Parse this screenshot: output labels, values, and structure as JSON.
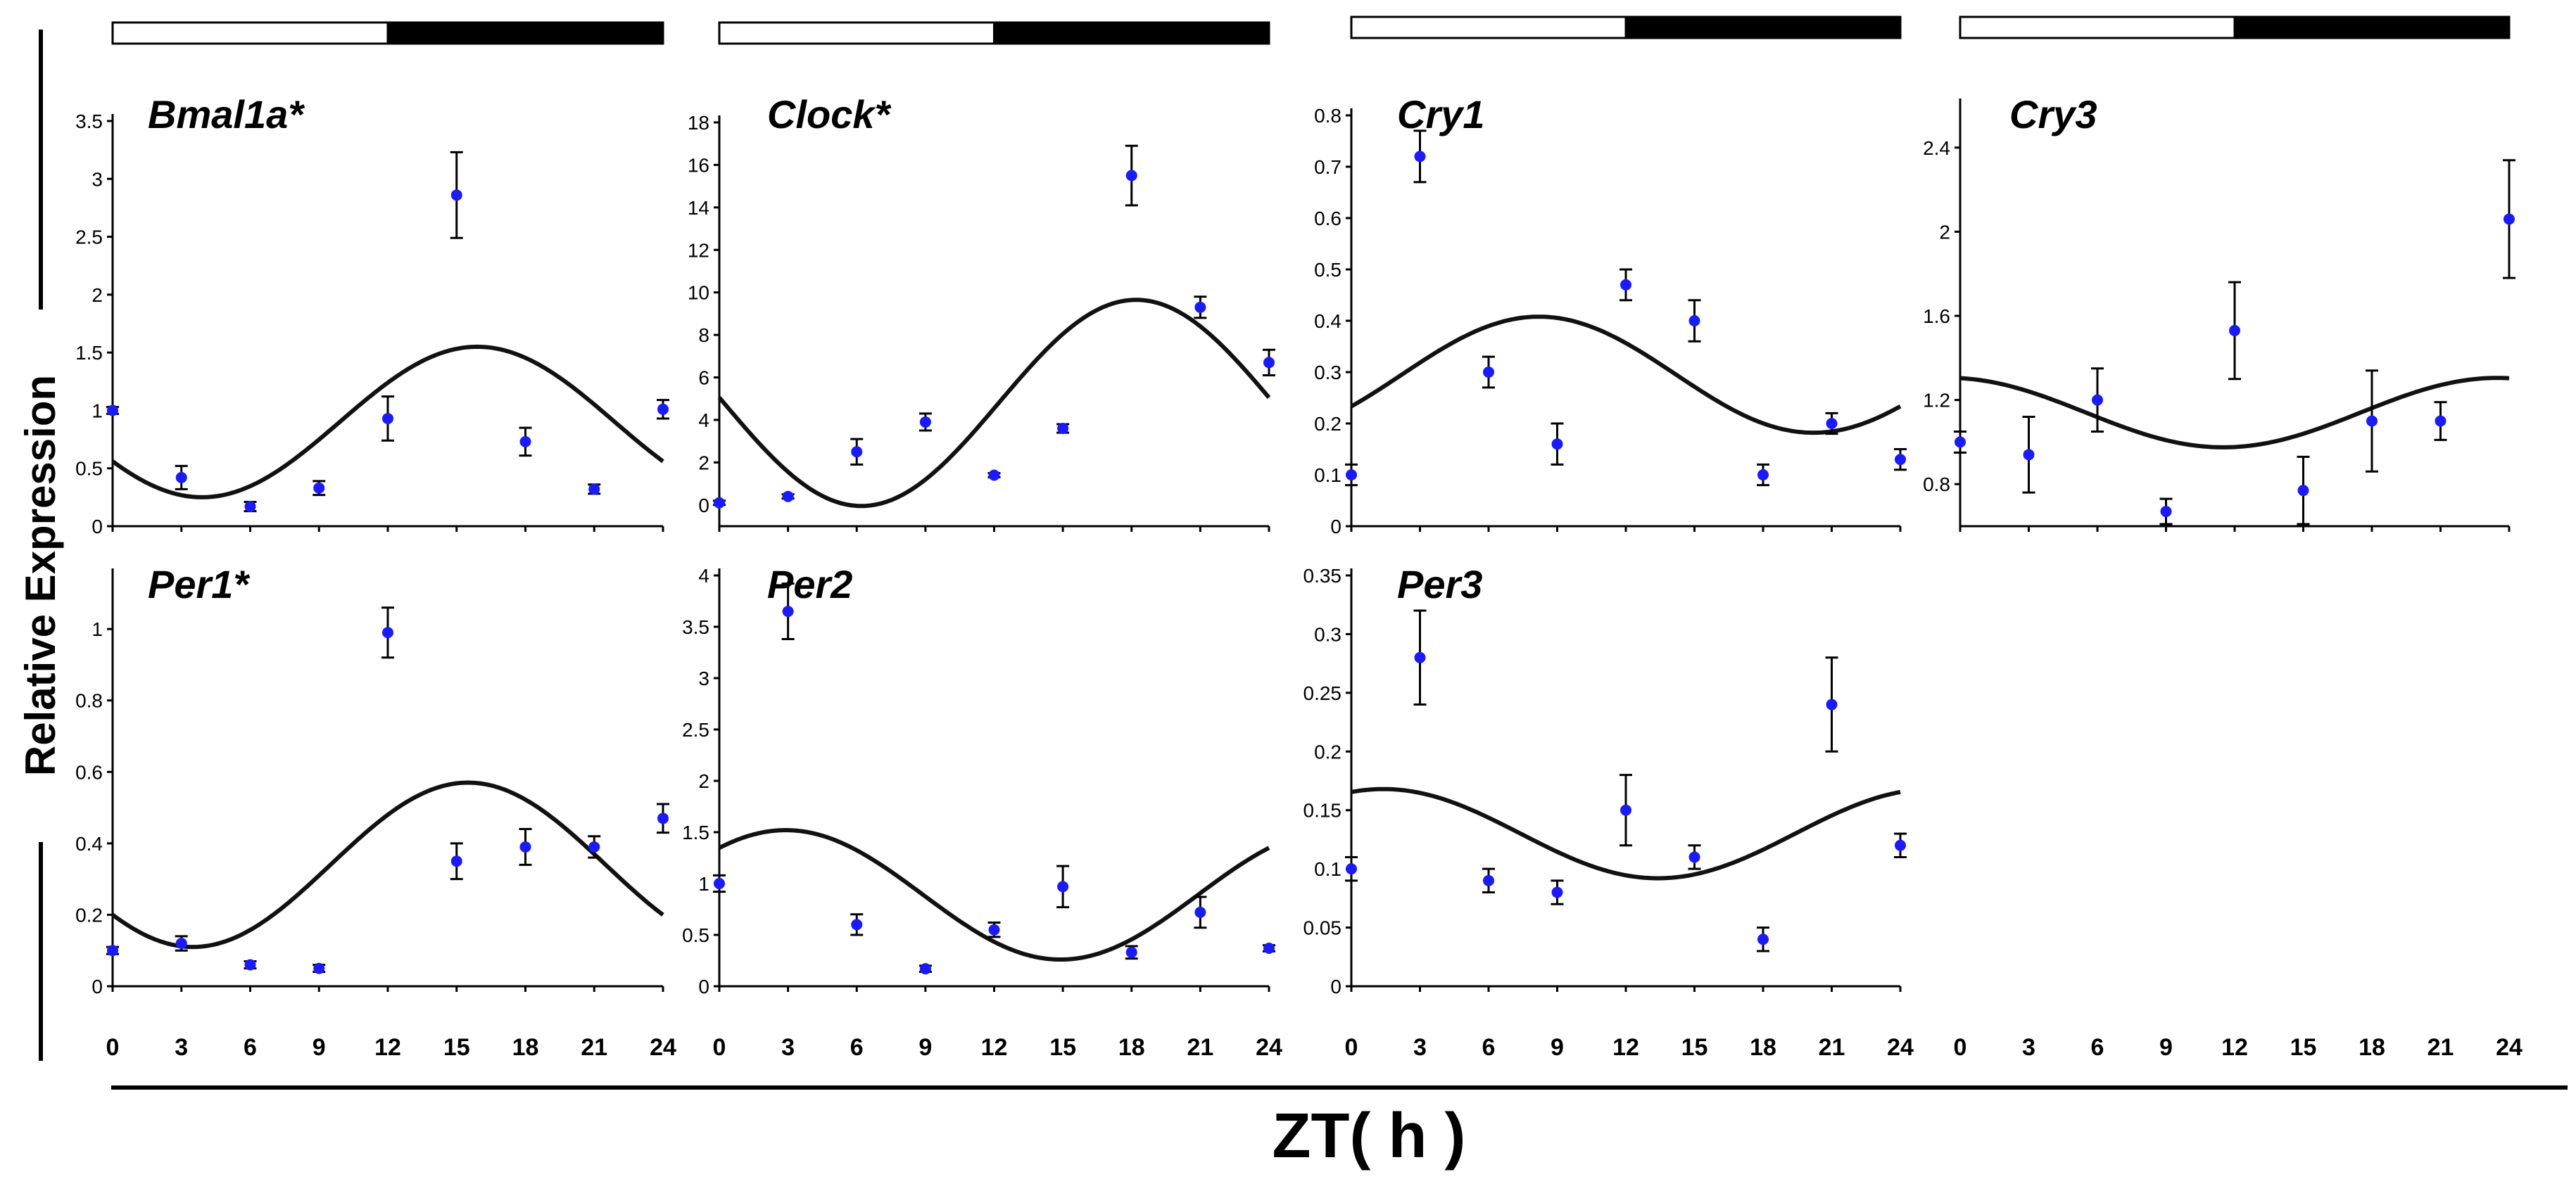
{
  "figure": {
    "ylabel": "Relative Expression",
    "xlabel": "ZT( h )"
  },
  "chart_data": [
    {
      "type": "scatter",
      "title": "Bmal1a*",
      "x": [
        0,
        3,
        6,
        9,
        12,
        15,
        18,
        21,
        24
      ],
      "y": [
        1.0,
        0.42,
        0.17,
        0.33,
        0.93,
        2.86,
        0.73,
        0.32,
        1.01
      ],
      "err": [
        0.03,
        0.1,
        0.04,
        0.06,
        0.19,
        0.37,
        0.12,
        0.04,
        0.08
      ],
      "fit": {
        "mesor": 0.9,
        "amp": 0.65,
        "peak": 15.9,
        "period": 24
      },
      "xticks": [
        "0",
        "3",
        "6",
        "9",
        "12",
        "15",
        "18",
        "21",
        "24"
      ],
      "yticks": [
        "0",
        "0.5",
        "1",
        "1.5",
        "2",
        "2.5",
        "3",
        "3.5"
      ],
      "ylim": [
        0,
        3.5
      ],
      "light_dark": [
        "light",
        "dark"
      ]
    },
    {
      "type": "scatter",
      "title": "Clock*",
      "x": [
        0,
        3,
        6,
        9,
        12,
        15,
        18,
        21,
        24
      ],
      "y": [
        0.1,
        0.4,
        2.5,
        3.9,
        1.4,
        3.6,
        15.5,
        9.3,
        6.7
      ],
      "err": [
        0.1,
        0.1,
        0.6,
        0.4,
        0.1,
        0.2,
        1.4,
        0.5,
        0.6
      ],
      "fit": {
        "mesor": 4.8,
        "amp": 4.85,
        "peak": 18.2,
        "period": 24
      },
      "xticks": [
        "0",
        "3",
        "6",
        "9",
        "12",
        "15",
        "18",
        "21",
        "24"
      ],
      "yticks": [
        "0",
        "2",
        "4",
        "6",
        "8",
        "10",
        "12",
        "14",
        "16",
        "18"
      ],
      "ylim": [
        -1,
        18
      ],
      "light_dark": [
        "light",
        "dark"
      ]
    },
    {
      "type": "scatter",
      "title": "Cry1",
      "x": [
        0,
        3,
        6,
        9,
        12,
        15,
        18,
        21,
        24
      ],
      "y": [
        0.1,
        0.72,
        0.3,
        0.16,
        0.47,
        0.4,
        0.1,
        0.2,
        0.13
      ],
      "err": [
        0.02,
        0.05,
        0.03,
        0.04,
        0.03,
        0.04,
        0.02,
        0.02,
        0.02
      ],
      "fit": {
        "mesor": 0.295,
        "amp": 0.113,
        "peak": 8.2,
        "period": 24
      },
      "xticks": [
        "0",
        "3",
        "6",
        "9",
        "12",
        "15",
        "18",
        "21",
        "24"
      ],
      "yticks": [
        "0",
        "0.1",
        "0.2",
        "0.3",
        "0.4",
        "0.5",
        "0.6",
        "0.7",
        "0.8"
      ],
      "ylim": [
        0,
        0.8
      ],
      "light_dark": [
        "light",
        "dark"
      ]
    },
    {
      "type": "scatter",
      "title": "Cry3",
      "x": [
        0,
        3,
        6,
        9,
        12,
        15,
        18,
        21,
        24
      ],
      "y": [
        1.0,
        0.94,
        1.2,
        0.67,
        1.53,
        0.77,
        1.1,
        1.1,
        2.06
      ],
      "err": [
        0.05,
        0.18,
        0.15,
        0.06,
        0.23,
        0.16,
        0.24,
        0.09,
        0.28
      ],
      "fit": {
        "mesor": 1.14,
        "amp": 0.165,
        "peak": 23.5,
        "period": 24
      },
      "xticks": [
        "0",
        "3",
        "6",
        "9",
        "12",
        "15",
        "18",
        "21",
        "24"
      ],
      "yticks": [
        "0.8",
        "1.2",
        "1.6",
        "2",
        "2.4"
      ],
      "ylim": [
        0.6,
        2.6
      ],
      "light_dark": [
        "light",
        "dark"
      ]
    },
    {
      "type": "scatter",
      "title": "Per1*",
      "x": [
        0,
        3,
        6,
        9,
        12,
        15,
        18,
        21,
        24
      ],
      "y": [
        0.1,
        0.12,
        0.06,
        0.05,
        0.99,
        0.35,
        0.39,
        0.39,
        0.47
      ],
      "err": [
        0.01,
        0.02,
        0.01,
        0.01,
        0.07,
        0.05,
        0.05,
        0.03,
        0.04
      ],
      "fit": {
        "mesor": 0.34,
        "amp": 0.23,
        "peak": 15.5,
        "period": 24
      },
      "xticks": [
        "0",
        "3",
        "6",
        "9",
        "12",
        "15",
        "18",
        "21",
        "24"
      ],
      "yticks": [
        "0",
        "0.2",
        "0.4",
        "0.6",
        "0.8",
        "1"
      ],
      "ylim": [
        0,
        1.15
      ],
      "light_dark": [
        "light",
        "dark"
      ]
    },
    {
      "type": "scatter",
      "title": "Per2",
      "x": [
        0,
        3,
        6,
        9,
        12,
        15,
        18,
        21,
        24
      ],
      "y": [
        1.0,
        3.65,
        0.6,
        0.17,
        0.55,
        0.97,
        0.33,
        0.72,
        0.37
      ],
      "err": [
        0.08,
        0.27,
        0.1,
        0.03,
        0.07,
        0.2,
        0.06,
        0.15,
        0.03
      ],
      "fit": {
        "mesor": 0.89,
        "amp": 0.63,
        "peak": 2.9,
        "period": 24
      },
      "xticks": [
        "0",
        "3",
        "6",
        "9",
        "12",
        "15",
        "18",
        "21",
        "24"
      ],
      "yticks": [
        "0",
        "0.5",
        "1",
        "1.5",
        "2",
        "2.5",
        "3",
        "3.5",
        "4"
      ],
      "ylim": [
        0,
        4
      ],
      "light_dark": [
        "light",
        "dark"
      ]
    },
    {
      "type": "scatter",
      "title": "Per3",
      "x": [
        0,
        3,
        6,
        9,
        12,
        15,
        18,
        21,
        24
      ],
      "y": [
        0.1,
        0.28,
        0.09,
        0.08,
        0.15,
        0.11,
        0.04,
        0.24,
        0.12
      ],
      "err": [
        0.01,
        0.04,
        0.01,
        0.01,
        0.03,
        0.01,
        0.01,
        0.04,
        0.01
      ],
      "fit": {
        "mesor": 0.13,
        "amp": 0.038,
        "peak": 1.4,
        "period": 24
      },
      "xticks": [
        "0",
        "3",
        "6",
        "9",
        "12",
        "15",
        "18",
        "21",
        "24"
      ],
      "yticks": [
        "0",
        "0.05",
        "0.1",
        "0.15",
        "0.2",
        "0.25",
        "0.3",
        "0.35"
      ],
      "ylim": [
        0,
        0.35
      ],
      "light_dark": [
        "light",
        "dark"
      ]
    }
  ]
}
